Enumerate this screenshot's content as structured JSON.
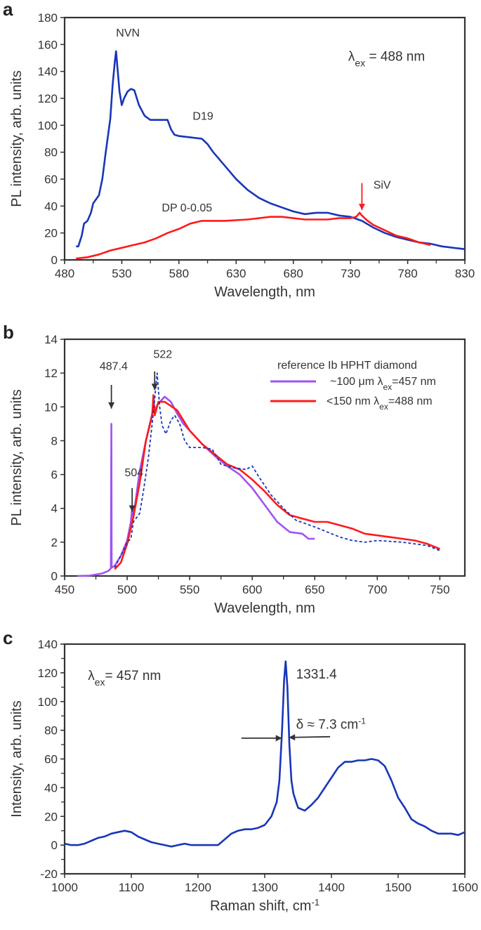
{
  "chart_data": [
    {
      "panel_label": "a",
      "type": "line",
      "xlabel": "Wavelength, nm",
      "ylabel": "PL intensity, arb. units",
      "xlim": [
        480,
        830
      ],
      "ylim": [
        0,
        180
      ],
      "xticks": [
        "480",
        "530",
        "580",
        "630",
        "680",
        "730",
        "780",
        "830"
      ],
      "yticks": [
        "0",
        "20",
        "40",
        "60",
        "80",
        "100",
        "120",
        "140",
        "160",
        "180"
      ],
      "grid": false,
      "excitation": {
        "symbol": "λ",
        "sub": "ex",
        "text": " = 488 nm"
      },
      "annotations": [
        "NVN",
        "D19",
        "DP 0-0.05",
        "SiV"
      ],
      "series": [
        {
          "color": "#1836b8",
          "x": [
            490,
            492,
            495,
            497,
            500,
            503,
            505,
            510,
            513,
            516,
            520,
            522,
            524,
            525,
            526,
            528,
            530,
            532,
            535,
            538,
            541,
            545,
            550,
            555,
            560,
            565,
            570,
            573,
            576,
            580,
            590,
            600,
            605,
            610,
            620,
            630,
            640,
            650,
            660,
            670,
            680,
            690,
            700,
            710,
            720,
            730,
            740,
            750,
            760,
            770,
            780,
            790,
            800,
            810,
            820,
            830
          ],
          "y": [
            10,
            10,
            18,
            27,
            29,
            35,
            42,
            48,
            60,
            80,
            105,
            130,
            148,
            155,
            145,
            125,
            115,
            120,
            125,
            127,
            126,
            115,
            107,
            104,
            104,
            104,
            104,
            97,
            93,
            92,
            91,
            90,
            86,
            80,
            70,
            60,
            52,
            46,
            42,
            39,
            36,
            34,
            35,
            35,
            33,
            32,
            29,
            24,
            20,
            17,
            15,
            13,
            12,
            10,
            9,
            8
          ]
        },
        {
          "color": "#ff1a1a",
          "x": [
            490,
            500,
            510,
            520,
            530,
            540,
            550,
            560,
            570,
            580,
            590,
            600,
            610,
            620,
            640,
            660,
            670,
            680,
            690,
            700,
            710,
            720,
            730,
            735,
            738,
            740,
            745,
            750,
            760,
            770,
            780,
            790,
            800
          ],
          "y": [
            1,
            2,
            4,
            7,
            9,
            11,
            13,
            16,
            20,
            23,
            27,
            29,
            29,
            29,
            30,
            32,
            32,
            31,
            30,
            30,
            30,
            31,
            31,
            32,
            35,
            33,
            29,
            26,
            22,
            18,
            16,
            13,
            11
          ]
        }
      ]
    },
    {
      "panel_label": "b",
      "type": "line",
      "xlabel": "Wavelength, nm",
      "ylabel": "PL intensity, arb. units",
      "xlim": [
        450,
        770
      ],
      "ylim": [
        0,
        14
      ],
      "xticks": [
        "450",
        "500",
        "550",
        "600",
        "650",
        "700",
        "750"
      ],
      "yticks": [
        "0",
        "2",
        "4",
        "6",
        "8",
        "10",
        "12",
        "14"
      ],
      "grid": false,
      "legend": {
        "title": "reference Ib HPHT diamond",
        "placement": "top-right"
      },
      "annotations": [
        "487.4",
        "522",
        "504"
      ],
      "series": [
        {
          "name_parts": [
            "~100 μm λ",
            "ex",
            "=457 nm"
          ],
          "color": "#a152f2",
          "style": "solid",
          "x": [
            460,
            470,
            480,
            485,
            487,
            487.4,
            487.6,
            490,
            495,
            500,
            503,
            504,
            505,
            510,
            515,
            520,
            525,
            530,
            535,
            540,
            545,
            550,
            560,
            570,
            580,
            590,
            600,
            610,
            620,
            630,
            640,
            645,
            650
          ],
          "y": [
            0,
            0.02,
            0.15,
            0.3,
            0.45,
            9,
            0.5,
            0.6,
            1.2,
            2.1,
            3.2,
            4,
            3.5,
            6.2,
            8,
            9.6,
            10.2,
            10.6,
            10.3,
            9.6,
            9,
            8.6,
            7.8,
            7.1,
            6.5,
            6,
            5.2,
            4.2,
            3.2,
            2.6,
            2.5,
            2.2,
            2.2
          ]
        },
        {
          "name_parts": [
            "<150 nm  λ",
            "ex",
            "=488 nm"
          ],
          "color": "#ff1a1a",
          "style": "solid",
          "x": [
            490,
            495,
            500,
            505,
            510,
            515,
            520,
            521,
            522,
            525,
            530,
            540,
            550,
            560,
            570,
            580,
            590,
            600,
            610,
            620,
            630,
            640,
            650,
            660,
            670,
            680,
            690,
            700,
            710,
            720,
            730,
            740,
            750
          ],
          "y": [
            0.4,
            0.8,
            1.9,
            3.5,
            5.5,
            8,
            9.5,
            10.7,
            9.5,
            10.3,
            10.3,
            9.8,
            8.6,
            7.8,
            7.2,
            6.6,
            6.3,
            5.7,
            5,
            4.2,
            3.6,
            3.4,
            3.2,
            3.2,
            3.0,
            2.8,
            2.5,
            2.4,
            2.3,
            2.2,
            2.1,
            1.9,
            1.6
          ]
        },
        {
          "color": "#1836b8",
          "style": "dashed",
          "x": [
            490,
            495,
            500,
            503,
            505,
            510,
            513,
            517,
            520,
            522,
            524,
            526,
            528,
            531,
            535,
            538,
            542,
            546,
            550,
            560,
            568,
            575,
            585,
            595,
            600,
            605,
            615,
            625,
            635,
            650,
            660,
            670,
            680,
            690,
            700,
            720,
            740,
            750
          ],
          "y": [
            0.5,
            1.2,
            2,
            2.2,
            3.2,
            3.7,
            5,
            7,
            9,
            10.5,
            12,
            10,
            8.9,
            8.4,
            9.2,
            9.5,
            9,
            8,
            7.6,
            7.6,
            7.5,
            6.6,
            6.4,
            6.3,
            6.5,
            5.9,
            4.8,
            4,
            3.3,
            2.9,
            2.6,
            2.3,
            2.1,
            2.0,
            2.1,
            2.0,
            1.8,
            1.5
          ]
        }
      ]
    },
    {
      "panel_label": "c",
      "type": "line",
      "xlabel": "Raman shift, cm",
      "xlabel_sup": "-1",
      "ylabel": "Intensity, arb. units",
      "xlim": [
        1000,
        1600
      ],
      "ylim": [
        -20,
        140
      ],
      "xticks": [
        "1000",
        "1100",
        "1200",
        "1300",
        "1400",
        "1500",
        "1600"
      ],
      "yticks": [
        "-20",
        "0",
        "20",
        "40",
        "60",
        "80",
        "100",
        "120",
        "140"
      ],
      "grid": false,
      "excitation": {
        "symbol": "λ",
        "sub": "ex",
        "text": "= 457 nm"
      },
      "peak_label": "1331.4",
      "width_label": {
        "text": "δ ≈ 7.3 cm",
        "sup": "-1"
      },
      "series": [
        {
          "color": "#1836b8",
          "x": [
            1000,
            1010,
            1020,
            1030,
            1040,
            1050,
            1060,
            1070,
            1080,
            1090,
            1100,
            1110,
            1120,
            1130,
            1140,
            1150,
            1160,
            1170,
            1180,
            1190,
            1200,
            1210,
            1220,
            1230,
            1240,
            1250,
            1260,
            1270,
            1280,
            1290,
            1300,
            1310,
            1318,
            1322,
            1326,
            1329,
            1331.4,
            1334,
            1337,
            1340,
            1343,
            1347,
            1350,
            1360,
            1370,
            1380,
            1390,
            1400,
            1410,
            1420,
            1430,
            1440,
            1450,
            1460,
            1470,
            1480,
            1490,
            1500,
            1510,
            1520,
            1530,
            1540,
            1550,
            1560,
            1570,
            1580,
            1590,
            1600
          ],
          "y": [
            1,
            0,
            0,
            1,
            3,
            5,
            6,
            8,
            9,
            10,
            9,
            6,
            4,
            2,
            1,
            0,
            -1,
            0,
            1,
            0,
            0,
            0,
            0,
            0,
            4,
            8,
            10,
            11,
            11,
            12,
            14,
            20,
            30,
            45,
            80,
            115,
            128,
            110,
            70,
            45,
            36,
            30,
            26,
            24,
            28,
            33,
            40,
            47,
            54,
            58,
            58,
            59,
            59,
            60,
            59,
            55,
            45,
            33,
            26,
            18,
            15,
            13,
            10,
            8,
            8,
            8,
            7,
            9
          ]
        }
      ]
    }
  ]
}
